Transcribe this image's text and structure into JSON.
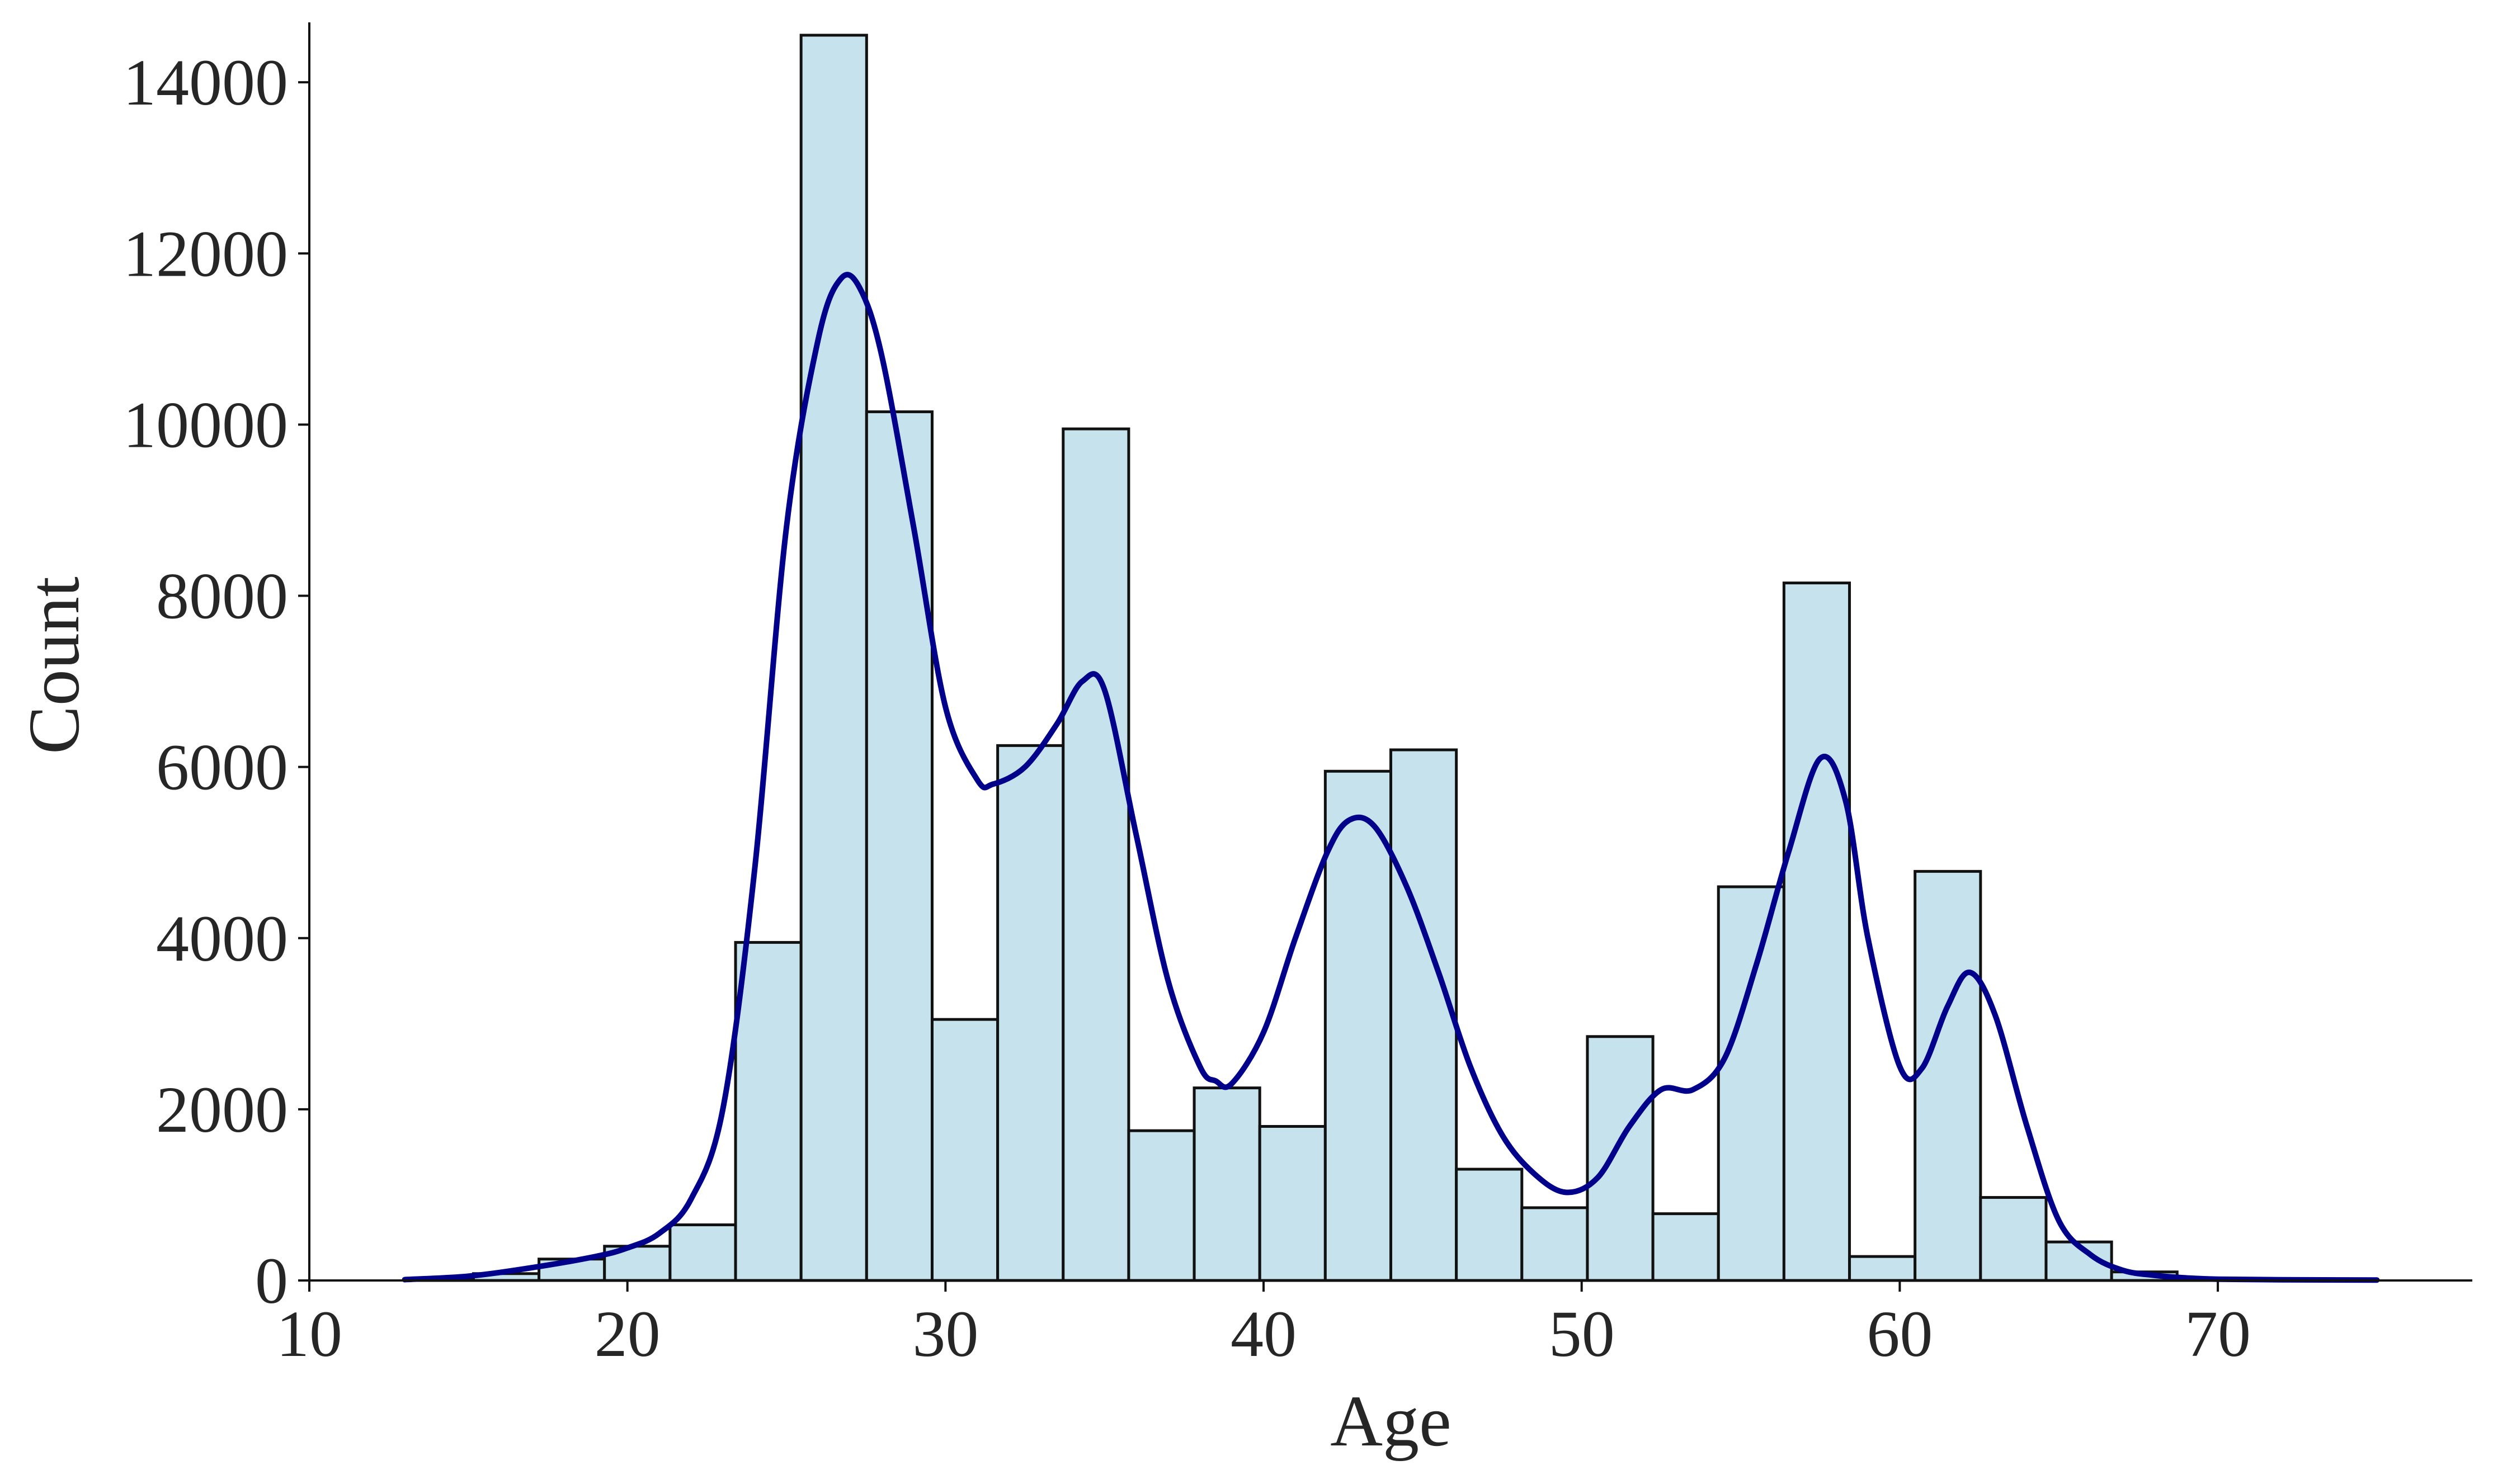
{
  "chart_data": {
    "type": "bar",
    "title": "",
    "xlabel": "Age",
    "ylabel": "Count",
    "xlim": [
      10,
      78
    ],
    "ylim": [
      0,
      14700
    ],
    "xticks": [
      10,
      20,
      30,
      40,
      50,
      60,
      70
    ],
    "yticks": [
      0,
      2000,
      4000,
      6000,
      8000,
      10000,
      12000,
      14000
    ],
    "bin_start": 13.1,
    "bin_width": 2.06,
    "bins": [
      {
        "x_start": 13.1,
        "count": 20
      },
      {
        "x_start": 15.16,
        "count": 80
      },
      {
        "x_start": 17.22,
        "count": 250
      },
      {
        "x_start": 19.28,
        "count": 400
      },
      {
        "x_start": 21.34,
        "count": 650
      },
      {
        "x_start": 23.4,
        "count": 3950
      },
      {
        "x_start": 25.46,
        "count": 14550
      },
      {
        "x_start": 27.52,
        "count": 10150
      },
      {
        "x_start": 29.58,
        "count": 3050
      },
      {
        "x_start": 31.64,
        "count": 6250
      },
      {
        "x_start": 33.7,
        "count": 9950
      },
      {
        "x_start": 35.76,
        "count": 1750
      },
      {
        "x_start": 37.82,
        "count": 2250
      },
      {
        "x_start": 39.88,
        "count": 1800
      },
      {
        "x_start": 41.94,
        "count": 5950
      },
      {
        "x_start": 44.0,
        "count": 6200
      },
      {
        "x_start": 46.06,
        "count": 1300
      },
      {
        "x_start": 48.12,
        "count": 850
      },
      {
        "x_start": 50.18,
        "count": 2850
      },
      {
        "x_start": 52.24,
        "count": 780
      },
      {
        "x_start": 54.3,
        "count": 4600
      },
      {
        "x_start": 56.36,
        "count": 8150
      },
      {
        "x_start": 58.42,
        "count": 280
      },
      {
        "x_start": 60.48,
        "count": 4780
      },
      {
        "x_start": 62.54,
        "count": 970
      },
      {
        "x_start": 64.6,
        "count": 450
      },
      {
        "x_start": 66.66,
        "count": 100
      },
      {
        "x_start": 68.72,
        "count": 15
      },
      {
        "x_start": 70.78,
        "count": 5
      },
      {
        "x_start": 72.84,
        "count": 3
      }
    ],
    "kde": {
      "color": "#00008b",
      "points": [
        [
          13,
          10
        ],
        [
          15,
          50
        ],
        [
          17,
          150
        ],
        [
          19,
          280
        ],
        [
          20,
          380
        ],
        [
          21,
          550
        ],
        [
          22,
          950
        ],
        [
          23,
          2000
        ],
        [
          24,
          4800
        ],
        [
          25,
          8800
        ],
        [
          26,
          11000
        ],
        [
          26.7,
          11700
        ],
        [
          27.3,
          11600
        ],
        [
          28,
          10800
        ],
        [
          29,
          8800
        ],
        [
          30,
          6700
        ],
        [
          31,
          5850
        ],
        [
          31.5,
          5800
        ],
        [
          32.5,
          6000
        ],
        [
          33.5,
          6500
        ],
        [
          34.3,
          7000
        ],
        [
          35,
          6900
        ],
        [
          36,
          5200
        ],
        [
          37,
          3500
        ],
        [
          38,
          2500
        ],
        [
          38.5,
          2330
        ],
        [
          39,
          2300
        ],
        [
          40,
          2900
        ],
        [
          41,
          4000
        ],
        [
          42,
          5000
        ],
        [
          42.7,
          5380
        ],
        [
          43.5,
          5300
        ],
        [
          44.5,
          4600
        ],
        [
          45.5,
          3600
        ],
        [
          46.5,
          2500
        ],
        [
          47.5,
          1700
        ],
        [
          48.5,
          1250
        ],
        [
          49.5,
          1030
        ],
        [
          50.5,
          1200
        ],
        [
          51.5,
          1800
        ],
        [
          52.5,
          2230
        ],
        [
          53.5,
          2230
        ],
        [
          54.5,
          2600
        ],
        [
          55.5,
          3700
        ],
        [
          56.5,
          5000
        ],
        [
          57.5,
          6100
        ],
        [
          58.3,
          5600
        ],
        [
          59,
          4000
        ],
        [
          60,
          2500
        ],
        [
          60.7,
          2480
        ],
        [
          61.5,
          3200
        ],
        [
          62.2,
          3600
        ],
        [
          63,
          3100
        ],
        [
          64,
          1800
        ],
        [
          65,
          700
        ],
        [
          66,
          300
        ],
        [
          67,
          120
        ],
        [
          68,
          60
        ],
        [
          69,
          30
        ],
        [
          70,
          15
        ],
        [
          72,
          8
        ],
        [
          75,
          5
        ]
      ]
    }
  }
}
